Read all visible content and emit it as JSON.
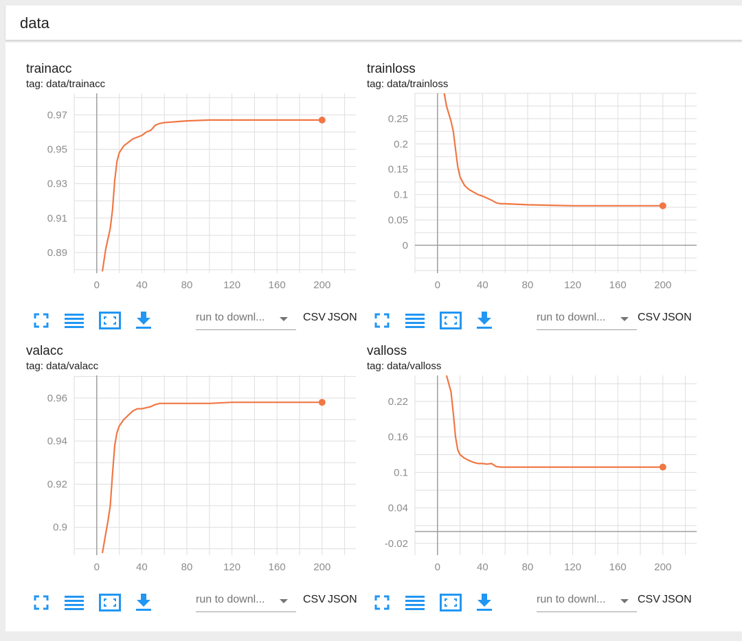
{
  "header": {
    "title": "data"
  },
  "toolbar": {
    "run_placeholder": "run to downl...",
    "csv_label": "CSV",
    "json_label": "JSON",
    "icons": [
      "fit-icon",
      "list-icon",
      "fullscreen-icon",
      "download-icon"
    ]
  },
  "colors": {
    "line": "#f07744",
    "grid": "#dedede",
    "axis": "#9e9e9e",
    "icon": "#2196f3"
  },
  "chart_data": [
    {
      "type": "line",
      "title": "trainacc",
      "tag": "tag: data/trainacc",
      "xlim": [
        -20,
        230
      ],
      "ylim": [
        0.878,
        0.9825
      ],
      "xticks": [
        0,
        40,
        80,
        120,
        160,
        200
      ],
      "xtick_labels": [
        "0",
        "40",
        "80",
        "120",
        "160",
        "200"
      ],
      "yticks": [
        0.89,
        0.91,
        0.93,
        0.95,
        0.97
      ],
      "ytick_labels": [
        "0.89",
        "0.91",
        "0.93",
        "0.95",
        "0.97"
      ],
      "series": [
        {
          "x": [
            5,
            8,
            10,
            12,
            14,
            16,
            18,
            20,
            24,
            28,
            32,
            36,
            40,
            44,
            48,
            52,
            56,
            60,
            70,
            80,
            100,
            120,
            140,
            160,
            180,
            200
          ],
          "y": [
            0.879,
            0.892,
            0.898,
            0.904,
            0.915,
            0.932,
            0.943,
            0.948,
            0.952,
            0.954,
            0.956,
            0.957,
            0.958,
            0.96,
            0.961,
            0.964,
            0.965,
            0.9655,
            0.966,
            0.9665,
            0.967,
            0.967,
            0.967,
            0.967,
            0.967,
            0.967
          ]
        }
      ]
    },
    {
      "type": "line",
      "title": "trainloss",
      "tag": "tag: data/trainloss",
      "xlim": [
        -20,
        230
      ],
      "ylim": [
        -0.055,
        0.3
      ],
      "xticks": [
        0,
        40,
        80,
        120,
        160,
        200
      ],
      "xtick_labels": [
        "0",
        "40",
        "80",
        "120",
        "160",
        "200"
      ],
      "yticks": [
        0,
        0.05,
        0.1,
        0.15,
        0.2,
        0.25
      ],
      "ytick_labels": [
        "0",
        "0.05",
        "0.1",
        "0.15",
        "0.2",
        "0.25"
      ],
      "series": [
        {
          "x": [
            6,
            8,
            10,
            12,
            14,
            16,
            18,
            20,
            24,
            28,
            32,
            36,
            40,
            44,
            48,
            52,
            56,
            60,
            70,
            80,
            100,
            120,
            140,
            160,
            180,
            200
          ],
          "y": [
            0.3,
            0.275,
            0.26,
            0.245,
            0.225,
            0.19,
            0.155,
            0.135,
            0.118,
            0.11,
            0.105,
            0.1,
            0.097,
            0.093,
            0.089,
            0.084,
            0.082,
            0.082,
            0.081,
            0.08,
            0.079,
            0.078,
            0.078,
            0.078,
            0.078,
            0.078
          ]
        }
      ]
    },
    {
      "type": "line",
      "title": "valacc",
      "tag": "tag: data/valacc",
      "xlim": [
        -20,
        230
      ],
      "ylim": [
        0.887,
        0.9705
      ],
      "xticks": [
        0,
        40,
        80,
        120,
        160,
        200
      ],
      "xtick_labels": [
        "0",
        "40",
        "80",
        "120",
        "160",
        "200"
      ],
      "yticks": [
        0.9,
        0.92,
        0.94,
        0.96
      ],
      "ytick_labels": [
        "0.9",
        "0.92",
        "0.94",
        "0.96"
      ],
      "series": [
        {
          "x": [
            5,
            8,
            10,
            12,
            14,
            16,
            18,
            20,
            24,
            28,
            32,
            36,
            40,
            44,
            48,
            52,
            56,
            60,
            70,
            80,
            100,
            120,
            140,
            160,
            180,
            200
          ],
          "y": [
            0.888,
            0.897,
            0.903,
            0.91,
            0.925,
            0.938,
            0.944,
            0.947,
            0.95,
            0.952,
            0.954,
            0.955,
            0.955,
            0.9555,
            0.956,
            0.957,
            0.9575,
            0.9575,
            0.9575,
            0.9575,
            0.9575,
            0.958,
            0.958,
            0.958,
            0.958,
            0.958
          ]
        }
      ]
    },
    {
      "type": "line",
      "title": "valloss",
      "tag": "tag: data/valloss",
      "xlim": [
        -20,
        230
      ],
      "ylim": [
        -0.04,
        0.264
      ],
      "xticks": [
        0,
        40,
        80,
        120,
        160,
        200
      ],
      "xtick_labels": [
        "0",
        "40",
        "80",
        "120",
        "160",
        "200"
      ],
      "yticks": [
        -0.02,
        0.04,
        0.1,
        0.16,
        0.22
      ],
      "ytick_labels": [
        "-0.02",
        "0.04",
        "0.1",
        "0.16",
        "0.22"
      ],
      "series": [
        {
          "x": [
            8,
            10,
            12,
            14,
            16,
            18,
            20,
            24,
            28,
            32,
            36,
            40,
            44,
            48,
            52,
            56,
            60,
            70,
            80,
            100,
            120,
            140,
            160,
            180,
            200
          ],
          "y": [
            0.264,
            0.25,
            0.236,
            0.2,
            0.16,
            0.138,
            0.13,
            0.124,
            0.12,
            0.117,
            0.115,
            0.115,
            0.114,
            0.115,
            0.11,
            0.109,
            0.109,
            0.109,
            0.109,
            0.109,
            0.109,
            0.109,
            0.109,
            0.109,
            0.109
          ]
        }
      ]
    }
  ]
}
